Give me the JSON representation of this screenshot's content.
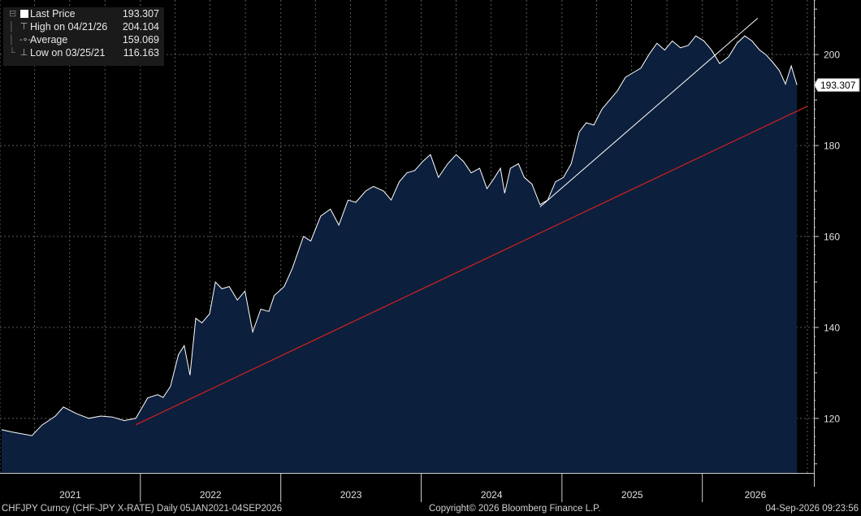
{
  "legend": {
    "last_price": {
      "label": "Last Price",
      "value": "193.307",
      "icon": "white-square-icon"
    },
    "high": {
      "label": "High on 04/21/26",
      "value": "204.104",
      "icon": "high-marker-icon"
    },
    "average": {
      "label": "Average",
      "value": "159.069",
      "icon": "average-marker-icon"
    },
    "low": {
      "label": "Low on 03/25/21",
      "value": "116.163",
      "icon": "low-marker-icon"
    }
  },
  "footer": {
    "left": "CHFJPY Curncy (CHF-JPY X-RATE) Daily 05JAN2021-04SEP2026",
    "center": "Copyright© 2026 Bloomberg Finance L.P.",
    "right": "04-Sep-2026 09:23:56"
  },
  "chart_data": {
    "type": "area",
    "ylim": [
      108,
      212
    ],
    "y_ticks": [
      120,
      140,
      160,
      180,
      200
    ],
    "x_year_labels": [
      "2021",
      "2022",
      "2023",
      "2024",
      "2025",
      "2026"
    ],
    "last_price_label": "193.307",
    "grid": true,
    "colors": {
      "background": "#000000",
      "area_fill": "#0c1f3c",
      "line": "#ffffff",
      "trend_red": "#d42020",
      "trend_white": "#ffffff",
      "grid": "#5a5a5a"
    },
    "series": [
      {
        "x": [
          "2021-01-05",
          "2021-02-01",
          "2021-03-25",
          "2021-04-20",
          "2021-05-25",
          "2021-06-15",
          "2021-07-20",
          "2021-08-20",
          "2021-09-20",
          "2021-10-20",
          "2021-11-20",
          "2021-12-20",
          "2022-01-20",
          "2022-02-15",
          "2022-03-01",
          "2022-03-20",
          "2022-04-10",
          "2022-04-25",
          "2022-05-10",
          "2022-05-25",
          "2022-06-10",
          "2022-06-30",
          "2022-07-15",
          "2022-08-01",
          "2022-08-20",
          "2022-09-10",
          "2022-09-30",
          "2022-10-20",
          "2022-11-10",
          "2022-12-01",
          "2022-12-15",
          "2023-01-10",
          "2023-01-31",
          "2023-03-01",
          "2023-03-20",
          "2023-04-15",
          "2023-05-10",
          "2023-06-01",
          "2023-06-25",
          "2023-07-15",
          "2023-08-10",
          "2023-08-30",
          "2023-09-25",
          "2023-10-15",
          "2023-11-05",
          "2023-11-25",
          "2023-12-15",
          "2024-01-05",
          "2024-01-25",
          "2024-02-15",
          "2024-03-10",
          "2024-04-01",
          "2024-04-20",
          "2024-05-10",
          "2024-06-01",
          "2024-06-20",
          "2024-07-10",
          "2024-07-25",
          "2024-08-05",
          "2024-08-20",
          "2024-09-10",
          "2024-09-25",
          "2024-10-15",
          "2024-11-05",
          "2024-11-25",
          "2024-12-15",
          "2025-01-05",
          "2025-01-25",
          "2025-02-15",
          "2025-03-05",
          "2025-03-25",
          "2025-04-15",
          "2025-05-05",
          "2025-05-25",
          "2025-06-15",
          "2025-07-05",
          "2025-07-25",
          "2025-08-15",
          "2025-09-05",
          "2025-09-25",
          "2025-10-15",
          "2025-11-05",
          "2025-11-25",
          "2025-12-15",
          "2026-01-05",
          "2026-01-25",
          "2026-02-15",
          "2026-03-10",
          "2026-04-01",
          "2026-04-21",
          "2026-05-10",
          "2026-05-30",
          "2026-06-15",
          "2026-07-01",
          "2026-07-20",
          "2026-08-05",
          "2026-08-20",
          "2026-09-04"
        ],
        "values": [
          117.5,
          117.0,
          116.2,
          118.5,
          120.5,
          122.5,
          121.0,
          120.0,
          120.5,
          120.3,
          119.5,
          120.0,
          124.5,
          125.2,
          124.6,
          127.0,
          134.0,
          136.0,
          129.5,
          142.0,
          141.0,
          143.0,
          150.0,
          148.5,
          149.0,
          146.0,
          148.0,
          139.0,
          144.0,
          143.5,
          147.0,
          149.0,
          153.0,
          160.0,
          159.0,
          164.5,
          166.0,
          162.5,
          168.0,
          167.5,
          170.0,
          171.0,
          170.0,
          168.0,
          172.0,
          174.0,
          174.5,
          176.5,
          178.0,
          173.0,
          176.0,
          178.0,
          176.5,
          174.0,
          175.0,
          170.5,
          173.0,
          175.0,
          169.5,
          175.0,
          176.0,
          173.0,
          171.5,
          167.0,
          168.0,
          172.0,
          173.0,
          176.0,
          183.0,
          185.0,
          184.5,
          188.0,
          190.0,
          192.0,
          195.0,
          196.0,
          197.0,
          200.0,
          202.5,
          201.0,
          203.0,
          201.5,
          202.0,
          204.1,
          203.0,
          201.0,
          198.0,
          199.5,
          202.5,
          204.1,
          203.0,
          201.0,
          200.0,
          198.5,
          196.5,
          193.5,
          197.5,
          193.3
        ]
      }
    ],
    "trendlines": [
      {
        "color": "red",
        "from": {
          "x": "2021-12-20",
          "y": 118.6
        },
        "to": {
          "x": "2026-09-30",
          "y": 188.6
        }
      },
      {
        "color": "white",
        "from": {
          "x": "2024-11-05",
          "y": 166.5
        },
        "to": {
          "x": "2026-05-25",
          "y": 208.0
        }
      }
    ]
  }
}
